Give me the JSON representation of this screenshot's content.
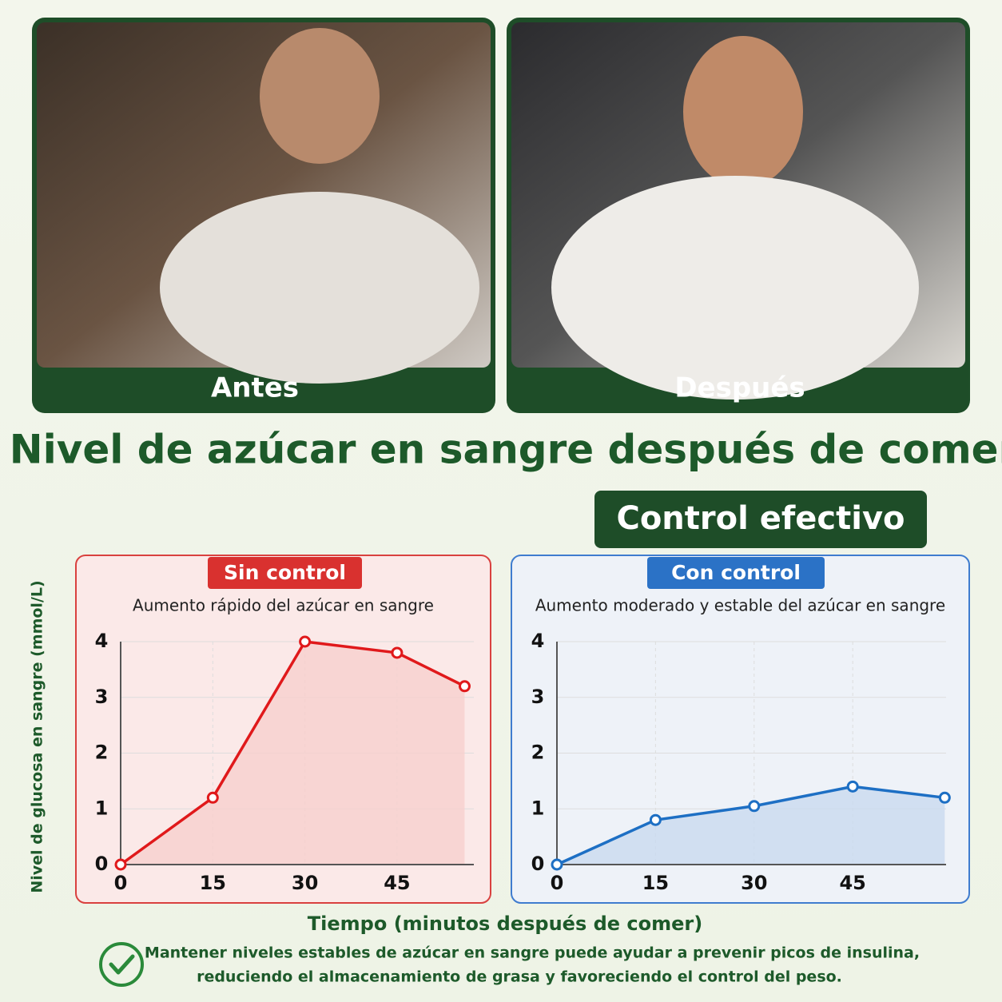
{
  "header": {
    "panels": [
      "Antes",
      "Después"
    ]
  },
  "title": "Nivel de azúcar en sangre después de comer",
  "badge": "Control efectivo",
  "y_axis_label": "Nivel de glucosa en sangre (mmol/L)",
  "x_axis_label": "Tiempo (minutos después de comer)",
  "note": [
    "Mantener niveles estables de azúcar en sangre puede ayudar a prevenir picos de insulina,",
    "reduciendo el almacenamiento de grasa y favoreciendo el control del peso."
  ],
  "chart_data": [
    {
      "type": "line",
      "label": "Sin control",
      "subtitle": "Aumento rápido del azúcar en sangre",
      "color": "#e0191b",
      "x": [
        0,
        15,
        30,
        45,
        56
      ],
      "values": [
        0,
        1.2,
        4,
        3.8,
        3.2
      ],
      "xlim": [
        0,
        57.5
      ],
      "ylim": [
        0,
        4
      ],
      "xticks": [
        0,
        15,
        30,
        45
      ],
      "yticks": [
        0,
        1,
        2,
        3,
        4
      ],
      "grid": true
    },
    {
      "type": "line",
      "label": "Con control",
      "subtitle": "Aumento moderado y estable del azúcar en sangre",
      "color": "#1d6fc4",
      "x": [
        0,
        15,
        30,
        45,
        59
      ],
      "values": [
        0,
        0.8,
        1.05,
        1.4,
        1.2
      ],
      "xlim": [
        0,
        59.2
      ],
      "ylim": [
        0,
        4
      ],
      "xticks": [
        0,
        15,
        30,
        45
      ],
      "yticks": [
        0,
        1,
        2,
        3,
        4
      ],
      "grid": true
    }
  ]
}
